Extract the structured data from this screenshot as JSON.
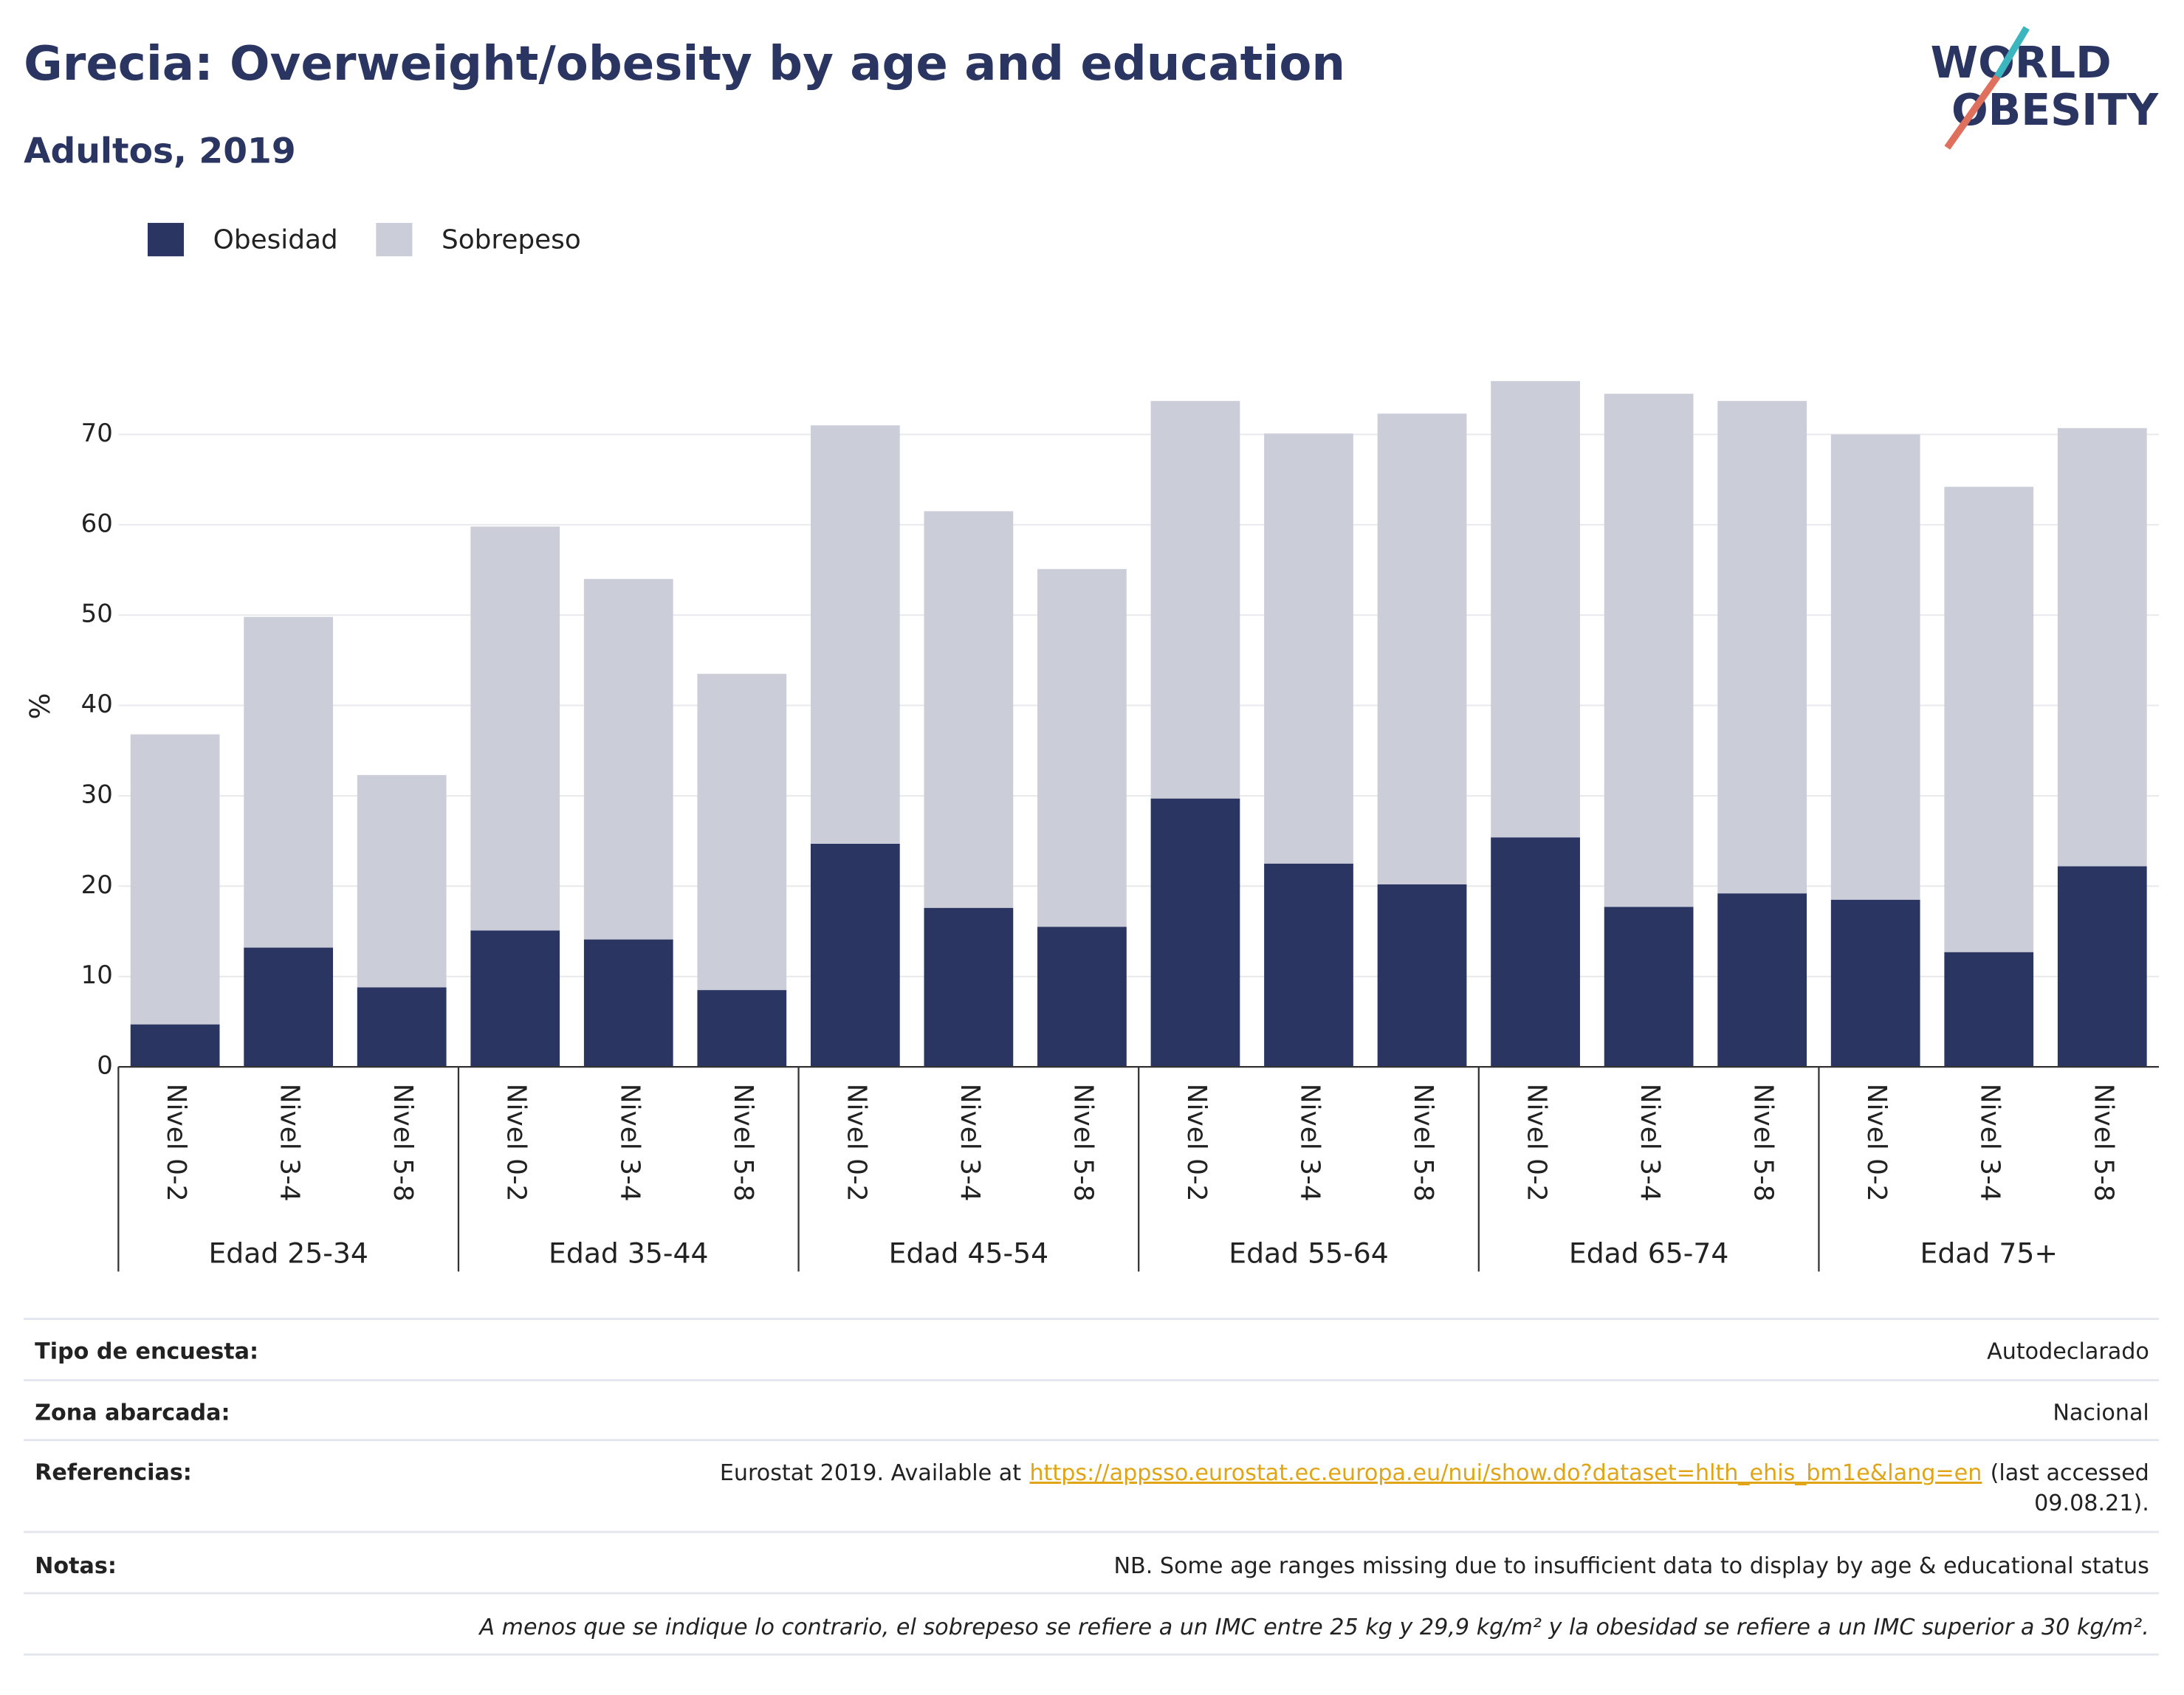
{
  "header": {
    "title": "Grecia: Overweight/obesity by age and education",
    "subtitle": "Adultos, 2019",
    "logo": {
      "line1": "WORLD",
      "line2": "OBESITY"
    }
  },
  "chart_data": {
    "type": "stacked_bar",
    "y_label": "%",
    "categories": [
      "Nivel 0-2",
      "Nivel 3-4",
      "Nivel 5-8",
      "Nivel 0-2",
      "Nivel 3-4",
      "Nivel 5-8",
      "Nivel 0-2",
      "Nivel 3-4",
      "Nivel 5-8",
      "Nivel 0-2",
      "Nivel 3-4",
      "Nivel 5-8",
      "Nivel 0-2",
      "Nivel 3-4",
      "Nivel 5-8",
      "Nivel 0-2",
      "Nivel 3-4",
      "Nivel 5-8"
    ],
    "groups": [
      "Edad 25-34",
      "Edad 35-44",
      "Edad 45-54",
      "Edad 55-64",
      "Edad 65-74",
      "Edad 75+"
    ],
    "series": [
      {
        "name": "Obesidad",
        "color": "#2a3561",
        "values": [
          4.7,
          13.2,
          8.8,
          15.1,
          14.1,
          8.5,
          24.7,
          17.6,
          15.5,
          29.7,
          22.5,
          20.2,
          25.4,
          17.7,
          19.2,
          18.5,
          12.7,
          22.2
        ]
      },
      {
        "name": "Sobrepeso",
        "color": "#cbcdd9",
        "values": [
          32.1,
          36.6,
          23.5,
          44.7,
          39.9,
          35.0,
          46.3,
          43.9,
          39.6,
          44.0,
          47.6,
          52.1,
          50.5,
          56.8,
          54.5,
          51.5,
          51.5,
          48.5
        ]
      }
    ],
    "ylim": [
      0,
      80
    ],
    "yticks": [
      0,
      10,
      20,
      30,
      40,
      50,
      60,
      70
    ],
    "grid": true,
    "legend": "top-left"
  },
  "table": {
    "rows": [
      {
        "label": "Tipo de encuesta:",
        "value": "Autodeclarado"
      },
      {
        "label": "Zona abarcada:",
        "value": "Nacional"
      }
    ],
    "references": {
      "label": "Referencias:",
      "before": "Eurostat 2019. Available at",
      "link": "https://appsso.eurostat.ec.europa.eu/nui/show.do?dataset=hlth_ehis_bm1e&lang=en",
      "after": [
        "(last accessed",
        "09.08.21)."
      ]
    },
    "notes": {
      "label": "Notas:",
      "value": "NB. Some age ranges missing due to insufficient data to display by age & educational status"
    },
    "footnote": "A menos que se indique lo contrario, el sobrepeso se refiere a un IMC entre 25 kg y 29,9 kg/m² y la obesidad se refiere a un IMC superior a 30 kg/m²."
  }
}
